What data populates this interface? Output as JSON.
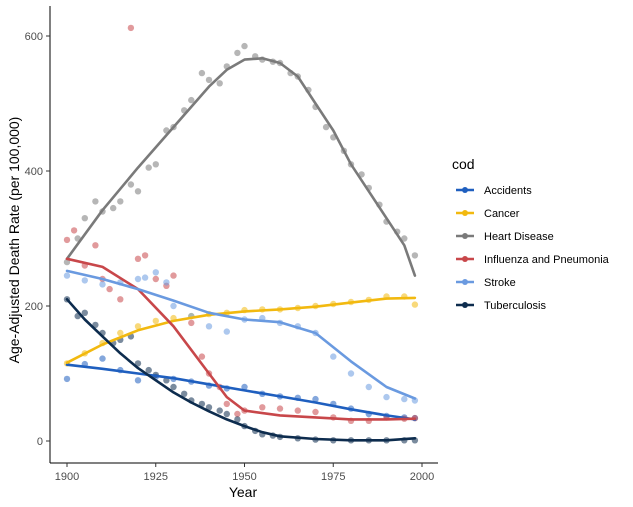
{
  "chart_data": {
    "type": "scatter",
    "title": "",
    "xlabel": "Year",
    "ylabel": "Age-Adjusted Death Rate (per 100,000)",
    "xlim": [
      1900,
      2000
    ],
    "ylim": [
      0,
      600
    ],
    "x_ticks": [
      1900,
      1925,
      1950,
      1975,
      2000
    ],
    "y_ticks": [
      0,
      200,
      400,
      600
    ],
    "grid": false,
    "legend": {
      "title": "cod",
      "placement": "right"
    },
    "smooth_line": true,
    "series": [
      {
        "name": "Accidents",
        "color": "#1f5fbf",
        "points": [
          [
            1900,
            92
          ],
          [
            1905,
            114
          ],
          [
            1910,
            122
          ],
          [
            1915,
            105
          ],
          [
            1920,
            90
          ],
          [
            1925,
            95
          ],
          [
            1930,
            92
          ],
          [
            1935,
            88
          ],
          [
            1940,
            82
          ],
          [
            1945,
            78
          ],
          [
            1950,
            80
          ],
          [
            1955,
            70
          ],
          [
            1960,
            66
          ],
          [
            1965,
            64
          ],
          [
            1970,
            62
          ],
          [
            1975,
            55
          ],
          [
            1980,
            48
          ],
          [
            1985,
            40
          ],
          [
            1990,
            37
          ],
          [
            1995,
            35
          ],
          [
            1998,
            34
          ]
        ],
        "fit": [
          [
            1900,
            113
          ],
          [
            1910,
            107
          ],
          [
            1920,
            100
          ],
          [
            1930,
            93
          ],
          [
            1940,
            84
          ],
          [
            1950,
            75
          ],
          [
            1960,
            66
          ],
          [
            1970,
            57
          ],
          [
            1980,
            47
          ],
          [
            1990,
            38
          ],
          [
            1998,
            32
          ]
        ]
      },
      {
        "name": "Cancer",
        "color": "#f2b90f",
        "points": [
          [
            1900,
            115
          ],
          [
            1905,
            130
          ],
          [
            1910,
            145
          ],
          [
            1915,
            160
          ],
          [
            1920,
            170
          ],
          [
            1925,
            178
          ],
          [
            1930,
            182
          ],
          [
            1935,
            185
          ],
          [
            1940,
            188
          ],
          [
            1945,
            190
          ],
          [
            1950,
            194
          ],
          [
            1955,
            195
          ],
          [
            1960,
            195
          ],
          [
            1965,
            197
          ],
          [
            1970,
            200
          ],
          [
            1975,
            203
          ],
          [
            1980,
            206
          ],
          [
            1985,
            209
          ],
          [
            1990,
            214
          ],
          [
            1995,
            214
          ],
          [
            1998,
            202
          ]
        ],
        "fit": [
          [
            1900,
            116
          ],
          [
            1910,
            143
          ],
          [
            1920,
            164
          ],
          [
            1930,
            178
          ],
          [
            1940,
            187
          ],
          [
            1950,
            192
          ],
          [
            1960,
            195
          ],
          [
            1970,
            199
          ],
          [
            1980,
            205
          ],
          [
            1990,
            211
          ],
          [
            1998,
            212
          ]
        ]
      },
      {
        "name": "Heart Disease",
        "color": "#7a7a7a",
        "points": [
          [
            1900,
            265
          ],
          [
            1903,
            300
          ],
          [
            1905,
            330
          ],
          [
            1908,
            355
          ],
          [
            1910,
            340
          ],
          [
            1913,
            345
          ],
          [
            1915,
            355
          ],
          [
            1918,
            380
          ],
          [
            1920,
            370
          ],
          [
            1923,
            405
          ],
          [
            1925,
            410
          ],
          [
            1928,
            460
          ],
          [
            1930,
            465
          ],
          [
            1933,
            490
          ],
          [
            1935,
            505
          ],
          [
            1938,
            545
          ],
          [
            1940,
            535
          ],
          [
            1943,
            530
          ],
          [
            1945,
            555
          ],
          [
            1948,
            575
          ],
          [
            1950,
            585
          ],
          [
            1953,
            570
          ],
          [
            1955,
            565
          ],
          [
            1958,
            562
          ],
          [
            1960,
            560
          ],
          [
            1963,
            545
          ],
          [
            1965,
            540
          ],
          [
            1968,
            520
          ],
          [
            1970,
            495
          ],
          [
            1973,
            465
          ],
          [
            1975,
            450
          ],
          [
            1978,
            430
          ],
          [
            1980,
            410
          ],
          [
            1983,
            395
          ],
          [
            1985,
            375
          ],
          [
            1988,
            350
          ],
          [
            1990,
            325
          ],
          [
            1993,
            310
          ],
          [
            1995,
            300
          ],
          [
            1998,
            275
          ]
        ],
        "fit": [
          [
            1900,
            270
          ],
          [
            1910,
            342
          ],
          [
            1920,
            405
          ],
          [
            1930,
            465
          ],
          [
            1940,
            525
          ],
          [
            1945,
            550
          ],
          [
            1950,
            565
          ],
          [
            1955,
            567
          ],
          [
            1960,
            560
          ],
          [
            1965,
            540
          ],
          [
            1970,
            500
          ],
          [
            1975,
            460
          ],
          [
            1980,
            410
          ],
          [
            1985,
            370
          ],
          [
            1990,
            330
          ],
          [
            1995,
            290
          ],
          [
            1998,
            245
          ]
        ]
      },
      {
        "name": "Influenza and Pneumonia",
        "color": "#c8474a",
        "points": [
          [
            1900,
            298
          ],
          [
            1902,
            312
          ],
          [
            1905,
            260
          ],
          [
            1908,
            290
          ],
          [
            1910,
            240
          ],
          [
            1912,
            225
          ],
          [
            1915,
            210
          ],
          [
            1918,
            612
          ],
          [
            1920,
            270
          ],
          [
            1922,
            275
          ],
          [
            1925,
            240
          ],
          [
            1928,
            230
          ],
          [
            1930,
            245
          ],
          [
            1935,
            175
          ],
          [
            1938,
            125
          ],
          [
            1940,
            100
          ],
          [
            1943,
            80
          ],
          [
            1945,
            55
          ],
          [
            1948,
            40
          ],
          [
            1950,
            45
          ],
          [
            1955,
            50
          ],
          [
            1960,
            48
          ],
          [
            1965,
            45
          ],
          [
            1970,
            43
          ],
          [
            1975,
            35
          ],
          [
            1980,
            30
          ],
          [
            1985,
            30
          ],
          [
            1990,
            35
          ],
          [
            1995,
            33
          ],
          [
            1998,
            34
          ]
        ],
        "fit": [
          [
            1900,
            270
          ],
          [
            1910,
            258
          ],
          [
            1920,
            225
          ],
          [
            1930,
            170
          ],
          [
            1940,
            100
          ],
          [
            1945,
            65
          ],
          [
            1950,
            45
          ],
          [
            1960,
            38
          ],
          [
            1970,
            35
          ],
          [
            1980,
            32
          ],
          [
            1990,
            32
          ],
          [
            1998,
            33
          ]
        ]
      },
      {
        "name": "Stroke",
        "color": "#6a9ae0",
        "points": [
          [
            1900,
            245
          ],
          [
            1905,
            238
          ],
          [
            1910,
            232
          ],
          [
            1915,
            235
          ],
          [
            1920,
            240
          ],
          [
            1922,
            242
          ],
          [
            1925,
            250
          ],
          [
            1928,
            235
          ],
          [
            1930,
            200
          ],
          [
            1935,
            185
          ],
          [
            1940,
            170
          ],
          [
            1945,
            162
          ],
          [
            1950,
            180
          ],
          [
            1955,
            182
          ],
          [
            1960,
            175
          ],
          [
            1965,
            170
          ],
          [
            1970,
            160
          ],
          [
            1975,
            125
          ],
          [
            1980,
            100
          ],
          [
            1985,
            80
          ],
          [
            1990,
            65
          ],
          [
            1995,
            62
          ],
          [
            1998,
            60
          ]
        ],
        "fit": [
          [
            1900,
            252
          ],
          [
            1910,
            240
          ],
          [
            1920,
            225
          ],
          [
            1930,
            208
          ],
          [
            1940,
            190
          ],
          [
            1950,
            180
          ],
          [
            1960,
            176
          ],
          [
            1970,
            160
          ],
          [
            1980,
            118
          ],
          [
            1990,
            80
          ],
          [
            1998,
            63
          ]
        ]
      },
      {
        "name": "Tuberculosis",
        "color": "#0d2c4e",
        "points": [
          [
            1900,
            210
          ],
          [
            1903,
            185
          ],
          [
            1905,
            190
          ],
          [
            1908,
            172
          ],
          [
            1910,
            160
          ],
          [
            1913,
            145
          ],
          [
            1915,
            150
          ],
          [
            1918,
            155
          ],
          [
            1920,
            115
          ],
          [
            1923,
            105
          ],
          [
            1925,
            98
          ],
          [
            1928,
            90
          ],
          [
            1930,
            80
          ],
          [
            1933,
            70
          ],
          [
            1935,
            60
          ],
          [
            1938,
            55
          ],
          [
            1940,
            50
          ],
          [
            1943,
            45
          ],
          [
            1945,
            40
          ],
          [
            1948,
            32
          ],
          [
            1950,
            22
          ],
          [
            1953,
            15
          ],
          [
            1955,
            10
          ],
          [
            1958,
            8
          ],
          [
            1960,
            6
          ],
          [
            1965,
            4
          ],
          [
            1970,
            2
          ],
          [
            1975,
            1
          ],
          [
            1980,
            1
          ],
          [
            1985,
            1
          ],
          [
            1990,
            1
          ],
          [
            1995,
            1
          ],
          [
            1998,
            1
          ]
        ],
        "fit": [
          [
            1900,
            210
          ],
          [
            1905,
            180
          ],
          [
            1910,
            155
          ],
          [
            1915,
            130
          ],
          [
            1920,
            108
          ],
          [
            1925,
            90
          ],
          [
            1930,
            72
          ],
          [
            1935,
            57
          ],
          [
            1940,
            44
          ],
          [
            1945,
            32
          ],
          [
            1950,
            22
          ],
          [
            1955,
            13
          ],
          [
            1960,
            7
          ],
          [
            1970,
            3
          ],
          [
            1980,
            1
          ],
          [
            1990,
            1
          ],
          [
            1998,
            4
          ]
        ]
      }
    ]
  }
}
